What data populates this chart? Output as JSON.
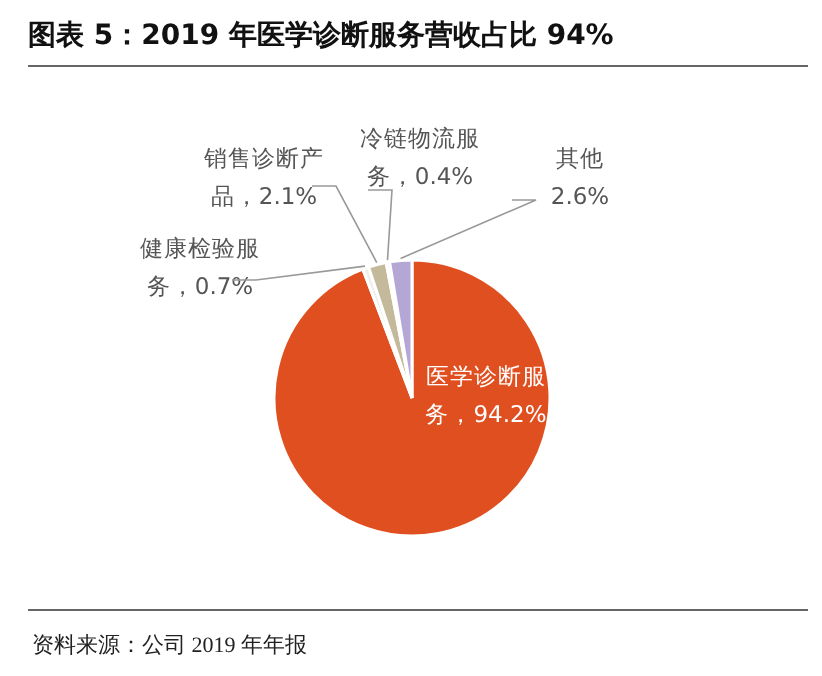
{
  "chart_data": {
    "type": "pie",
    "title": "图表 5：2019 年医学诊断服务营收占比 94%",
    "categories": [
      "医学诊断服务",
      "健康检验服务",
      "销售诊断产品",
      "冷链物流服务",
      "其他"
    ],
    "values": [
      94.2,
      0.7,
      2.1,
      0.4,
      2.6
    ],
    "colors": [
      "#e04f1f",
      "#f0eeea",
      "#c4b99a",
      "#f4f4f6",
      "#b4a7d6"
    ],
    "value_labels": [
      "，94.2%",
      "，0.7%",
      "，2.1%",
      "，0.4%",
      "2.6%"
    ],
    "legend": false,
    "annotations": [
      "资料来源：公司 2019 年年报"
    ]
  }
}
